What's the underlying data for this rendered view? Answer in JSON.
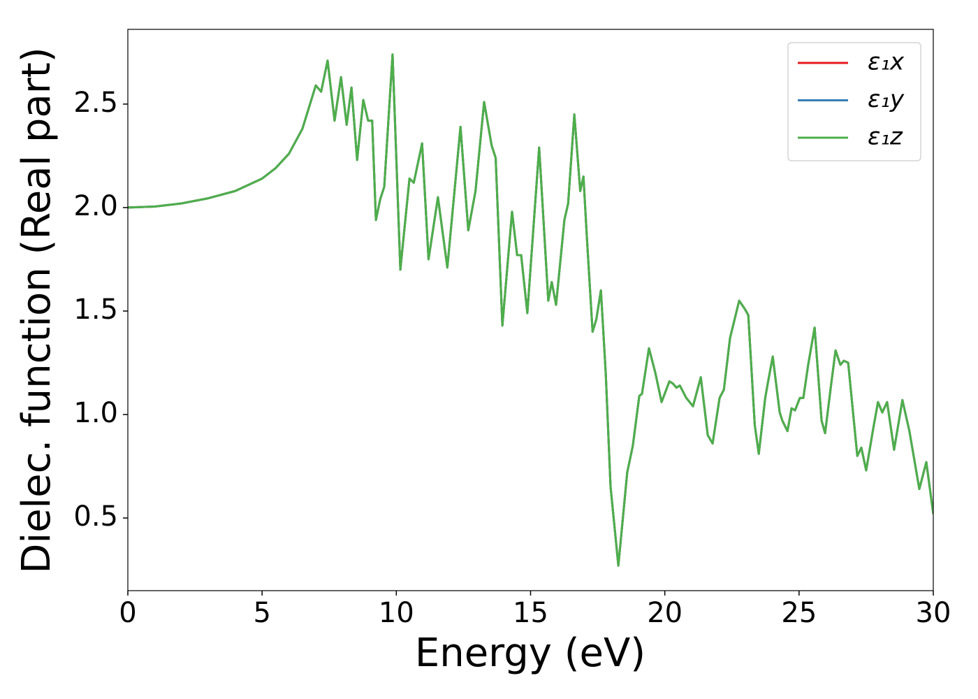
{
  "chart_data": {
    "type": "line",
    "xlabel": "Energy (eV)",
    "ylabel": "Dielec. function (Real part)",
    "x": [
      0,
      1,
      2,
      3,
      4,
      5,
      5.5,
      6,
      6.5,
      7.0,
      7.2,
      7.44,
      7.7,
      7.94,
      8.15,
      8.33,
      8.54,
      8.77,
      8.95,
      9.1,
      9.24,
      9.4,
      9.55,
      9.86,
      10.15,
      10.49,
      10.65,
      10.96,
      11.2,
      11.55,
      11.9,
      12.39,
      12.68,
      12.95,
      13.27,
      13.55,
      13.7,
      13.95,
      14.31,
      14.5,
      14.65,
      14.88,
      15.32,
      15.66,
      15.79,
      15.95,
      16.26,
      16.4,
      16.63,
      16.85,
      16.97,
      17.1,
      17.31,
      17.45,
      17.62,
      17.8,
      17.98,
      18.27,
      18.6,
      18.81,
      19.05,
      19.15,
      19.41,
      19.65,
      19.88,
      20.17,
      20.3,
      20.43,
      20.56,
      20.8,
      21.05,
      21.34,
      21.6,
      21.78,
      22.04,
      22.2,
      22.43,
      22.77,
      22.98,
      23.11,
      23.35,
      23.5,
      23.74,
      23.82,
      24.02,
      24.28,
      24.38,
      24.57,
      24.72,
      24.85,
      25.03,
      25.16,
      25.34,
      25.58,
      25.84,
      25.97,
      26.2,
      26.36,
      26.54,
      26.67,
      26.83,
      27.17,
      27.32,
      27.5,
      27.76,
      27.94,
      28.1,
      28.28,
      28.54,
      28.85,
      29.11,
      29.48,
      29.74,
      30
    ],
    "series": [
      {
        "name": "ε₁x",
        "color": "#e41a1c",
        "values": [
          2.0,
          2.005,
          2.02,
          2.045,
          2.08,
          2.14,
          2.19,
          2.26,
          2.38,
          2.59,
          2.56,
          2.71,
          2.42,
          2.63,
          2.4,
          2.58,
          2.23,
          2.52,
          2.42,
          2.42,
          1.94,
          2.04,
          2.1,
          2.74,
          1.7,
          2.14,
          2.12,
          2.31,
          1.75,
          2.05,
          1.71,
          2.39,
          1.89,
          2.08,
          2.51,
          2.3,
          2.24,
          1.43,
          1.98,
          1.77,
          1.77,
          1.49,
          2.29,
          1.55,
          1.64,
          1.53,
          1.94,
          2.02,
          2.45,
          2.08,
          2.15,
          1.85,
          1.4,
          1.46,
          1.6,
          1.2,
          0.65,
          0.27,
          0.72,
          0.85,
          1.09,
          1.1,
          1.32,
          1.2,
          1.06,
          1.16,
          1.15,
          1.13,
          1.14,
          1.08,
          1.04,
          1.18,
          0.9,
          0.86,
          1.08,
          1.12,
          1.37,
          1.55,
          1.51,
          1.48,
          0.95,
          0.81,
          1.08,
          1.14,
          1.28,
          1.01,
          0.97,
          0.92,
          1.03,
          1.02,
          1.08,
          1.08,
          1.24,
          1.42,
          0.97,
          0.91,
          1.15,
          1.31,
          1.24,
          1.26,
          1.25,
          0.8,
          0.84,
          0.73,
          0.93,
          1.06,
          1.01,
          1.06,
          0.83,
          1.07,
          0.92,
          0.64,
          0.77,
          0.52
        ]
      },
      {
        "name": "ε₁y",
        "color": "#377eb8",
        "values": [
          2.0,
          2.005,
          2.02,
          2.045,
          2.08,
          2.14,
          2.19,
          2.26,
          2.38,
          2.59,
          2.56,
          2.71,
          2.42,
          2.63,
          2.4,
          2.58,
          2.23,
          2.52,
          2.42,
          2.42,
          1.94,
          2.04,
          2.1,
          2.74,
          1.7,
          2.14,
          2.12,
          2.31,
          1.75,
          2.05,
          1.71,
          2.39,
          1.89,
          2.08,
          2.51,
          2.3,
          2.24,
          1.43,
          1.98,
          1.77,
          1.77,
          1.49,
          2.29,
          1.55,
          1.64,
          1.53,
          1.94,
          2.02,
          2.45,
          2.08,
          2.15,
          1.85,
          1.4,
          1.46,
          1.6,
          1.2,
          0.65,
          0.27,
          0.72,
          0.85,
          1.09,
          1.1,
          1.32,
          1.2,
          1.06,
          1.16,
          1.15,
          1.13,
          1.14,
          1.08,
          1.04,
          1.18,
          0.9,
          0.86,
          1.08,
          1.12,
          1.37,
          1.55,
          1.51,
          1.48,
          0.95,
          0.81,
          1.08,
          1.14,
          1.28,
          1.01,
          0.97,
          0.92,
          1.03,
          1.02,
          1.08,
          1.08,
          1.24,
          1.42,
          0.97,
          0.91,
          1.15,
          1.31,
          1.24,
          1.26,
          1.25,
          0.8,
          0.84,
          0.73,
          0.93,
          1.06,
          1.01,
          1.06,
          0.83,
          1.07,
          0.92,
          0.64,
          0.77,
          0.52
        ]
      },
      {
        "name": "ε₁z",
        "color": "#4daf4a",
        "values": [
          2.0,
          2.005,
          2.02,
          2.045,
          2.08,
          2.14,
          2.19,
          2.26,
          2.38,
          2.59,
          2.56,
          2.71,
          2.42,
          2.63,
          2.4,
          2.58,
          2.23,
          2.52,
          2.42,
          2.42,
          1.94,
          2.04,
          2.1,
          2.74,
          1.7,
          2.14,
          2.12,
          2.31,
          1.75,
          2.05,
          1.71,
          2.39,
          1.89,
          2.08,
          2.51,
          2.3,
          2.24,
          1.43,
          1.98,
          1.77,
          1.77,
          1.49,
          2.29,
          1.55,
          1.64,
          1.53,
          1.94,
          2.02,
          2.45,
          2.08,
          2.15,
          1.85,
          1.4,
          1.46,
          1.6,
          1.2,
          0.65,
          0.27,
          0.72,
          0.85,
          1.09,
          1.1,
          1.32,
          1.2,
          1.06,
          1.16,
          1.15,
          1.13,
          1.14,
          1.08,
          1.04,
          1.18,
          0.9,
          0.86,
          1.08,
          1.12,
          1.37,
          1.55,
          1.51,
          1.48,
          0.95,
          0.81,
          1.08,
          1.14,
          1.28,
          1.01,
          0.97,
          0.92,
          1.03,
          1.02,
          1.08,
          1.08,
          1.24,
          1.42,
          0.97,
          0.91,
          1.15,
          1.31,
          1.24,
          1.26,
          1.25,
          0.8,
          0.84,
          0.73,
          0.93,
          1.06,
          1.01,
          1.06,
          0.83,
          1.07,
          0.92,
          0.64,
          0.77,
          0.52
        ]
      }
    ],
    "xlim": [
      0,
      30
    ],
    "xticks": [
      0,
      5,
      10,
      15,
      20,
      25,
      30
    ],
    "ylim": [
      0.149,
      2.861
    ],
    "yticks": [
      0.5,
      {
        "value": 1,
        "label": "1.0"
      },
      1.5,
      {
        "value": 2,
        "label": "2.0"
      },
      2.5
    ],
    "grid": false,
    "legend": "upper right"
  }
}
